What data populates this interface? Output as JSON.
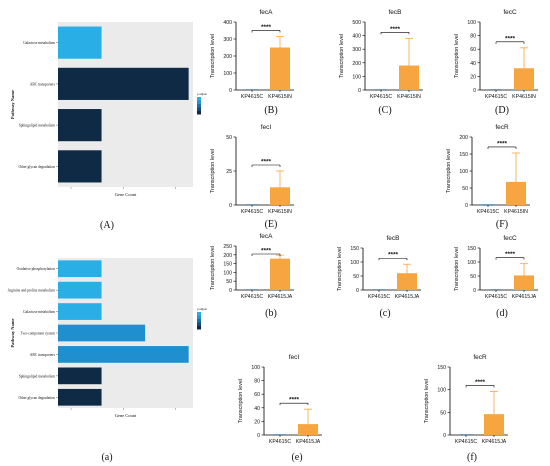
{
  "colors": {
    "dark_bar": "#0f2a44",
    "light_bar": "#29aee6",
    "mid_bar": "#1f8fd0",
    "orange": "#f7a541",
    "axis": "#000000"
  },
  "chart_data": [
    {
      "id": "A",
      "type": "bar",
      "orientation": "horizontal",
      "panel_label": "(A)",
      "xlabel": "Gene Count",
      "ylabel": "Pathway Name",
      "legend_title": "p.adjust",
      "categories": [
        "Galactose metabolism",
        "ABC transporters",
        "Sphingolipid metabolism",
        "Other glycan degradation"
      ],
      "values": [
        1,
        3,
        1,
        1
      ],
      "bar_colors": [
        "light",
        "dark",
        "dark",
        "dark"
      ],
      "xlim": [
        0,
        3.1
      ]
    },
    {
      "id": "a",
      "type": "bar",
      "orientation": "horizontal",
      "panel_label": "(a)",
      "xlabel": "Gene Count",
      "ylabel": "Pathway Name",
      "legend_title": "p.adjust",
      "categories": [
        "Oxidative phosphorylation",
        "Arginine and proline metabolism",
        "Galactose metabolism",
        "Two-component system",
        "ABC transporters",
        "Sphingolipid metabolism",
        "Other glycan degradation"
      ],
      "values": [
        1,
        1,
        1,
        2,
        3,
        1,
        1
      ],
      "bar_colors": [
        "light",
        "light",
        "light",
        "mid",
        "mid",
        "dark",
        "dark"
      ],
      "xlim": [
        0,
        3.1
      ]
    },
    {
      "id": "B",
      "type": "bar",
      "title": "fecA",
      "ylabel": "Transcription level",
      "categories": [
        "KP4615C",
        "KP4615IN"
      ],
      "values": [
        0,
        250
      ],
      "errors": [
        0,
        65
      ],
      "ylim": [
        0,
        400
      ],
      "ticks": [
        0,
        100,
        200,
        300,
        400
      ],
      "significance": "****",
      "panel_label": "(B)"
    },
    {
      "id": "C",
      "type": "bar",
      "title": "fecB",
      "ylabel": "Transcription level",
      "categories": [
        "KP4615C",
        "KP4615IN"
      ],
      "values": [
        0,
        180
      ],
      "errors": [
        0,
        200
      ],
      "ylim": [
        0,
        500
      ],
      "ticks": [
        0,
        100,
        200,
        300,
        400,
        500
      ],
      "significance": "****",
      "panel_label": "(C)"
    },
    {
      "id": "D",
      "type": "bar",
      "title": "fecC",
      "ylabel": "Transcription level",
      "categories": [
        "KP4615C",
        "KP4615IN"
      ],
      "values": [
        0,
        32
      ],
      "errors": [
        0,
        30
      ],
      "ylim": [
        0,
        100
      ],
      "ticks": [
        0,
        20,
        40,
        60,
        80,
        100
      ],
      "significance": "****",
      "panel_label": "(D)"
    },
    {
      "id": "E",
      "type": "bar",
      "title": "fecI",
      "ylabel": "Transcription level",
      "categories": [
        "KP4615C",
        "KP4615IN"
      ],
      "values": [
        0,
        13
      ],
      "errors": [
        0,
        12
      ],
      "ylim": [
        0,
        50
      ],
      "ticks": [
        0,
        25,
        50
      ],
      "significance": "****",
      "panel_label": "(E)"
    },
    {
      "id": "F",
      "type": "bar",
      "title": "fecR",
      "ylabel": "Transcription level",
      "categories": [
        "KP4615C",
        "KP4615IN"
      ],
      "values": [
        0,
        68
      ],
      "errors": [
        0,
        85
      ],
      "ylim": [
        0,
        200
      ],
      "ticks": [
        0,
        50,
        100,
        150,
        200
      ],
      "significance": "****",
      "panel_label": "(F)"
    },
    {
      "id": "b",
      "type": "bar",
      "title": "fecA",
      "ylabel": "Transcription level",
      "categories": [
        "KP4615C",
        "KP4615JA"
      ],
      "values": [
        0,
        178
      ],
      "errors": [
        0,
        20
      ],
      "ylim": [
        0,
        250
      ],
      "ticks": [
        0,
        50,
        100,
        150,
        200,
        250
      ],
      "significance": "****",
      "panel_label": "(b)"
    },
    {
      "id": "c",
      "type": "bar",
      "title": "fecB",
      "ylabel": "Transcription level",
      "categories": [
        "KP4615C",
        "KP4615JA"
      ],
      "values": [
        0,
        60
      ],
      "errors": [
        0,
        32
      ],
      "ylim": [
        0,
        150
      ],
      "ticks": [
        0,
        50,
        100,
        150
      ],
      "significance": "****",
      "panel_label": "(c)"
    },
    {
      "id": "d",
      "type": "bar",
      "title": "fecC",
      "ylabel": "Transcription level",
      "categories": [
        "KP4615C",
        "KP4615JA"
      ],
      "values": [
        0,
        52
      ],
      "errors": [
        0,
        42
      ],
      "ylim": [
        0,
        150
      ],
      "ticks": [
        0,
        50,
        100,
        150
      ],
      "significance": "****",
      "panel_label": "(d)"
    },
    {
      "id": "e",
      "type": "bar",
      "title": "fecI",
      "ylabel": "Transcription level",
      "categories": [
        "KP4615C",
        "KP4615JA"
      ],
      "values": [
        0,
        16
      ],
      "errors": [
        0,
        22
      ],
      "ylim": [
        0,
        100
      ],
      "ticks": [
        0,
        20,
        40,
        60,
        80,
        100
      ],
      "significance": "****",
      "panel_label": "(e)"
    },
    {
      "id": "f",
      "type": "bar",
      "title": "fecR",
      "ylabel": "Transcription level",
      "categories": [
        "KP4615C",
        "KP4615JA"
      ],
      "values": [
        0,
        46
      ],
      "errors": [
        0,
        50
      ],
      "ylim": [
        0,
        150
      ],
      "ticks": [
        0,
        50,
        100,
        150
      ],
      "significance": "****",
      "panel_label": "(f)"
    }
  ]
}
